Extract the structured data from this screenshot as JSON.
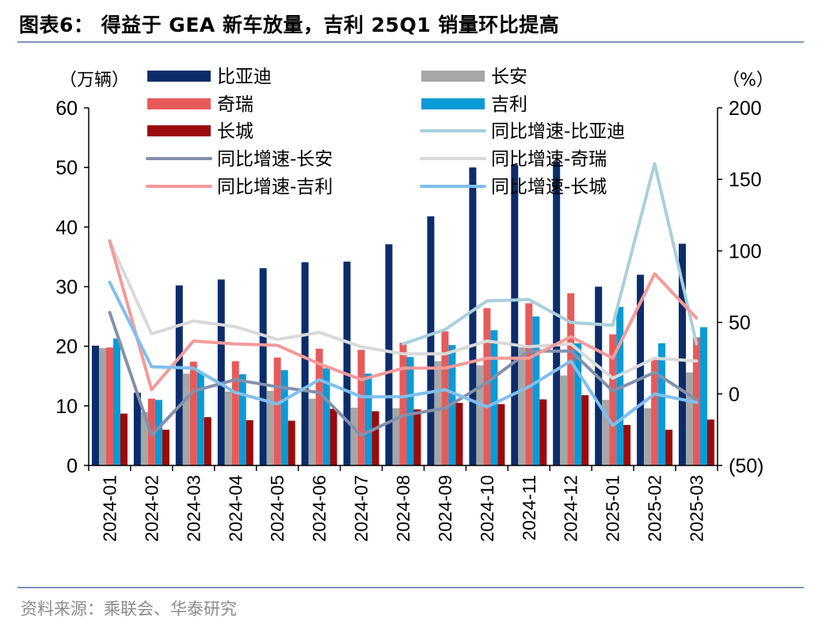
{
  "title": "图表6： 得益于 GEA 新车放量，吉利 25Q1 销量环比提高",
  "source": "资料来源：乘联会、华泰研究",
  "chart_data": {
    "type": "bar",
    "categories": [
      "2024-01",
      "2024-02",
      "2024-03",
      "2024-04",
      "2024-05",
      "2024-06",
      "2024-07",
      "2024-08",
      "2024-09",
      "2024-10",
      "2024-11",
      "2024-12",
      "2025-01",
      "2025-02",
      "2025-03"
    ],
    "left_axis": {
      "label": "（万辆）",
      "range": [
        0,
        60
      ],
      "ticks": [
        "0",
        "10",
        "20",
        "30",
        "40",
        "50",
        "60"
      ],
      "tick_values": [
        0,
        10,
        20,
        30,
        40,
        50,
        60
      ]
    },
    "right_axis": {
      "label": "（%）",
      "range": [
        -50,
        200
      ],
      "ticks": [
        "(50)",
        "0",
        "50",
        "100",
        "150",
        "200"
      ],
      "tick_values": [
        -50,
        0,
        50,
        100,
        150,
        200
      ]
    },
    "bar_series": [
      {
        "name": "比亚迪",
        "color": "#0b2d6b",
        "values": [
          20.1,
          12.2,
          30.2,
          31.2,
          33.1,
          34.1,
          34.2,
          37.1,
          41.8,
          50.0,
          50.4,
          51.0,
          30.0,
          32.0,
          37.2
        ]
      },
      {
        "name": "长安",
        "color": "#a6a6a6",
        "values": [
          19.7,
          9.0,
          15.4,
          12.4,
          12.5,
          11.2,
          9.7,
          9.6,
          17.5,
          16.8,
          19.8,
          15.1,
          11.0,
          9.6,
          15.6
        ]
      },
      {
        "name": "奇瑞",
        "color": "#e85a5a",
        "values": [
          19.8,
          11.2,
          17.4,
          17.5,
          18.1,
          19.6,
          19.4,
          20.6,
          22.5,
          26.4,
          27.2,
          28.9,
          22.0,
          18.0,
          21.5
        ]
      },
      {
        "name": "吉利",
        "color": "#0a9ad6",
        "values": [
          21.3,
          11.0,
          15.6,
          15.3,
          16.0,
          16.3,
          15.4,
          18.2,
          20.2,
          22.7,
          25.0,
          20.5,
          26.6,
          20.5,
          23.2
        ]
      },
      {
        "name": "长城",
        "color": "#9b0a0a",
        "values": [
          8.7,
          6.0,
          8.1,
          7.6,
          7.5,
          9.5,
          9.1,
          9.4,
          10.5,
          10.3,
          11.1,
          11.8,
          6.8,
          6.0,
          7.7
        ]
      }
    ],
    "line_series": [
      {
        "name": "同比增速-比亚迪",
        "color": "#a9cfdb",
        "values": [
          null,
          null,
          null,
          null,
          null,
          null,
          null,
          35,
          45,
          65,
          66,
          50,
          48,
          161,
          35
        ]
      },
      {
        "name": "同比增速-长安",
        "color": "#8490ab",
        "values": [
          57,
          -29,
          2,
          10,
          5,
          1,
          -29,
          -15,
          -10,
          8,
          30,
          30,
          2,
          15,
          -4
        ]
      },
      {
        "name": "同比增速-奇瑞",
        "color": "#d9d9d9",
        "values": [
          107,
          42,
          51,
          47,
          38,
          43,
          33,
          28,
          28,
          37,
          33,
          35,
          11,
          25,
          23
        ]
      },
      {
        "name": "同比增速-吉利",
        "color": "#f49a9a",
        "values": [
          107,
          3,
          37,
          35,
          34,
          21,
          10,
          18,
          18,
          25,
          25,
          40,
          25,
          84,
          53
        ]
      },
      {
        "name": "同比增速-长城",
        "color": "#7fbfee",
        "values": [
          78,
          19,
          18,
          1,
          -7,
          10,
          -2,
          -2,
          3,
          -9,
          5,
          23,
          -22,
          0,
          -6
        ]
      }
    ],
    "legend": [
      "比亚迪",
      "长安",
      "奇瑞",
      "吉利",
      "长城",
      "同比增速-比亚迪",
      "同比增速-长安",
      "同比增速-奇瑞",
      "同比增速-吉利",
      "同比增速-长城"
    ]
  }
}
